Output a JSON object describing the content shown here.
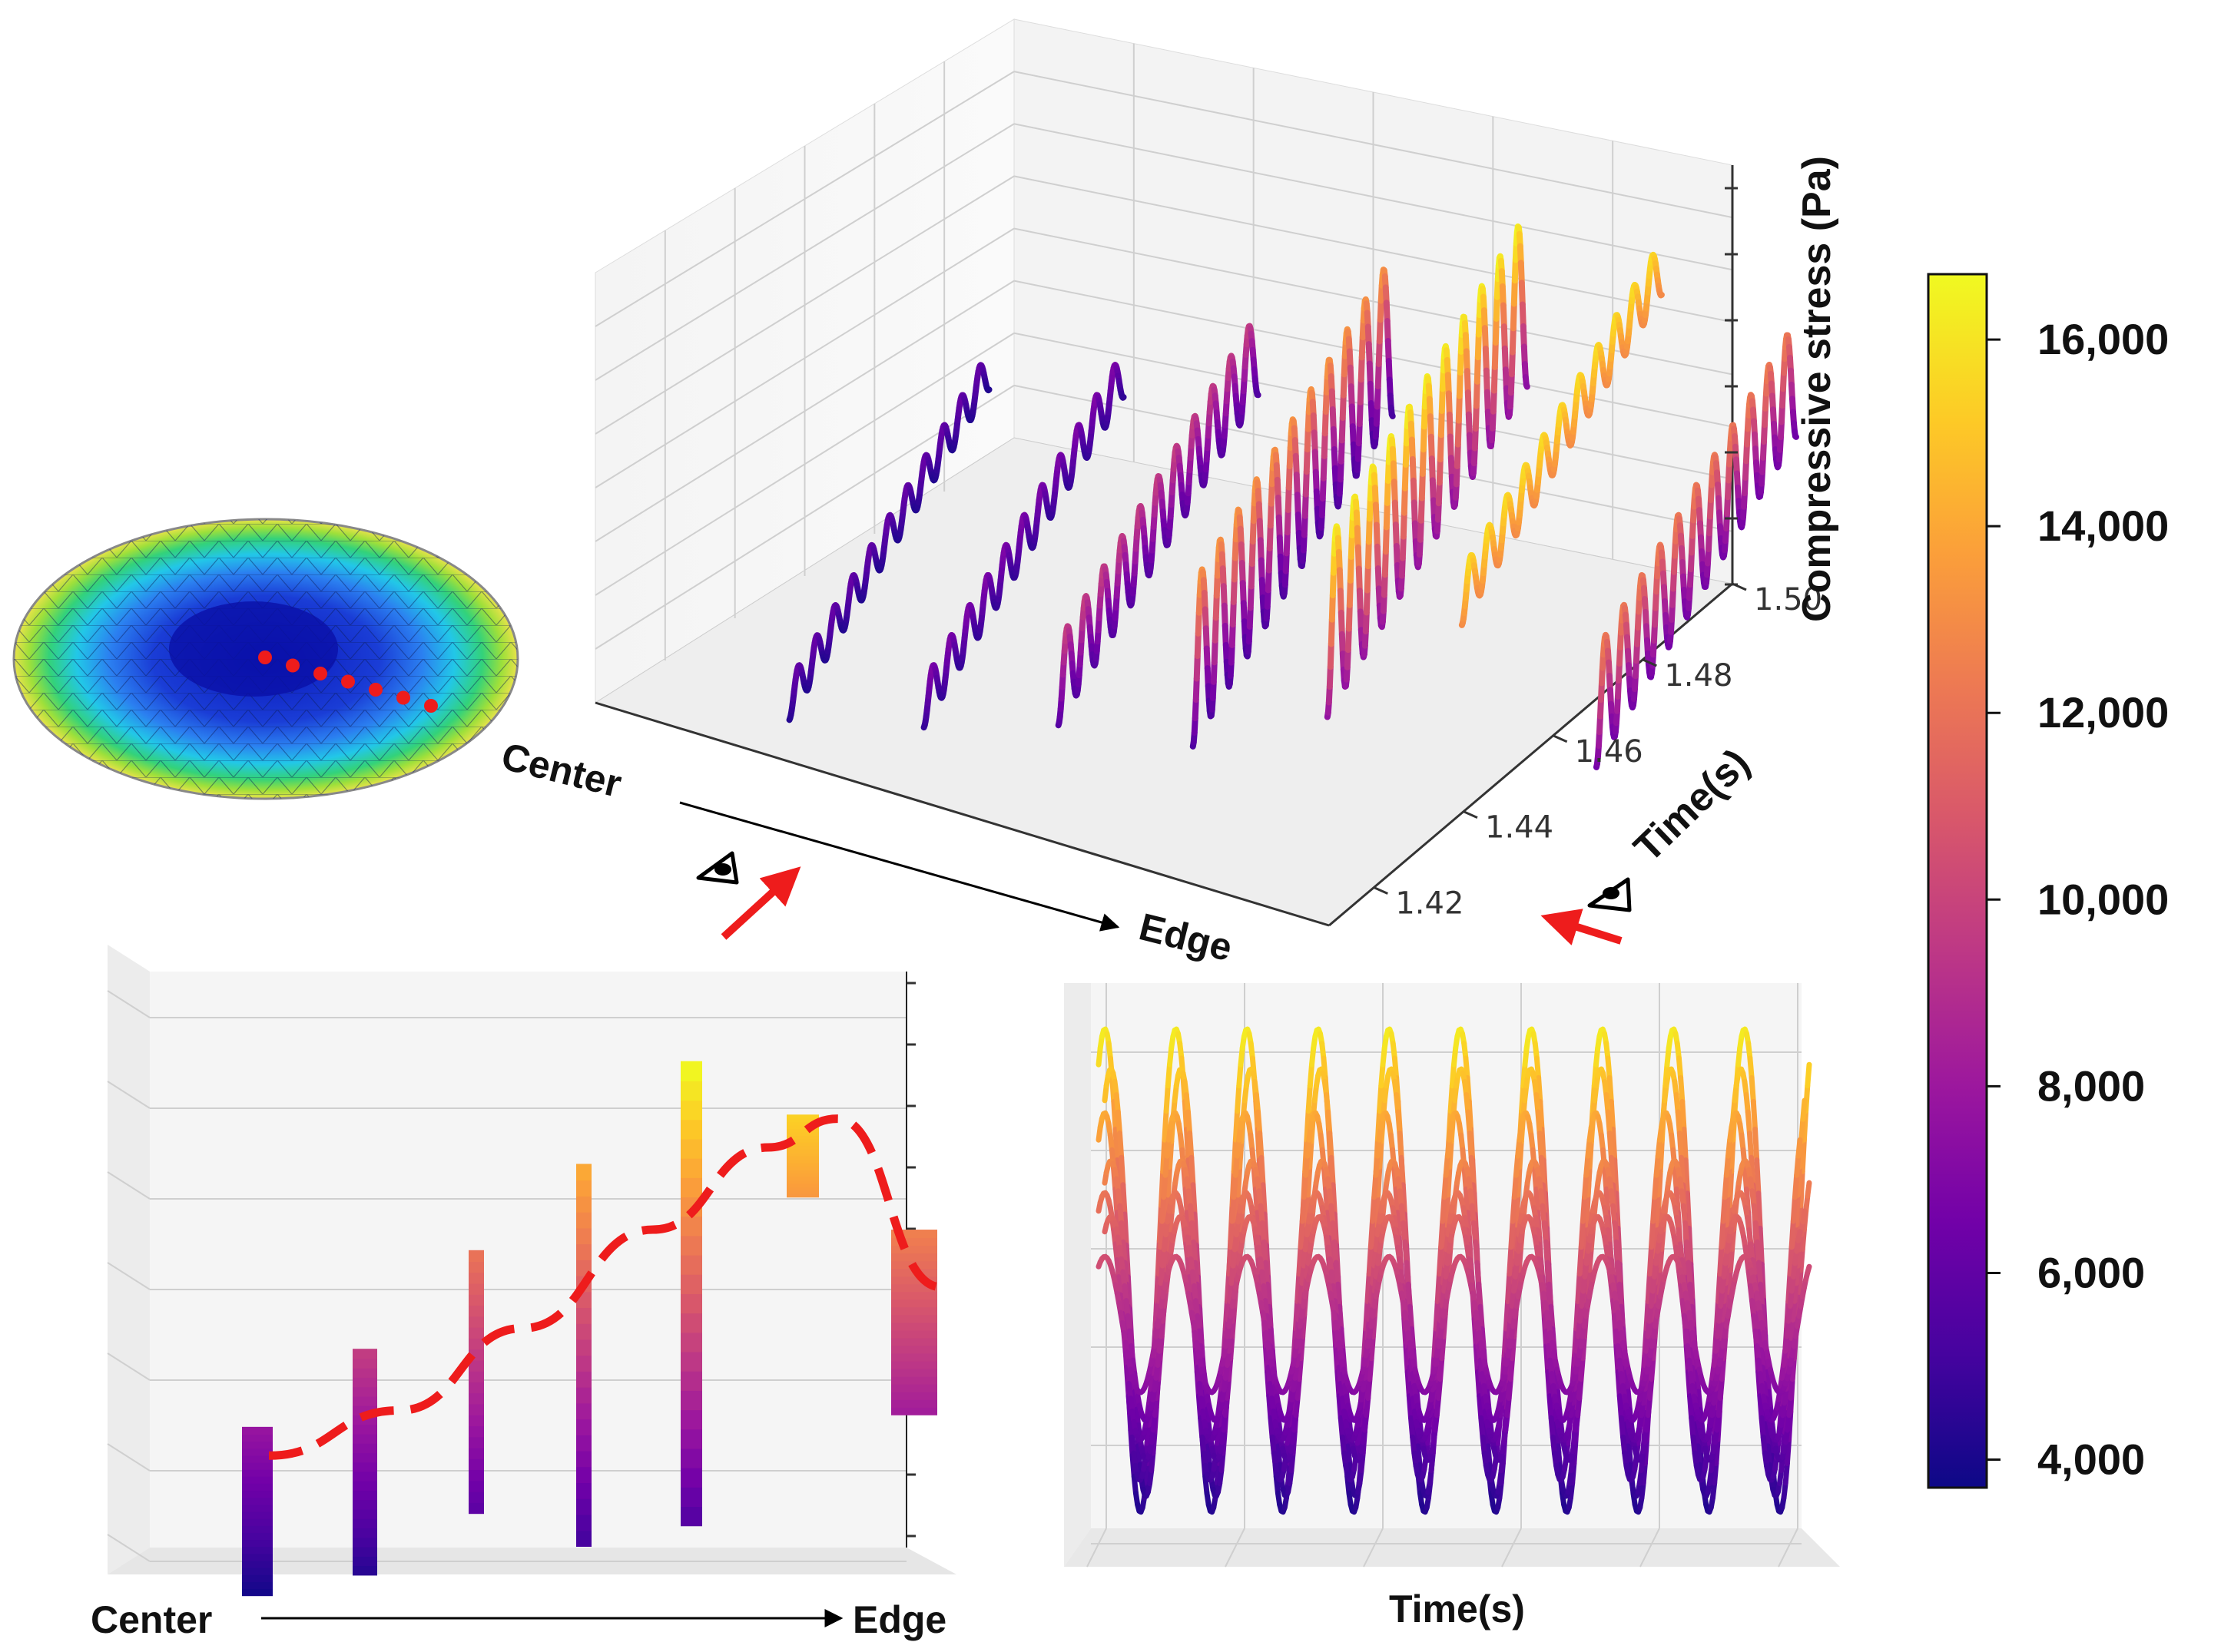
{
  "chart_data": [
    {
      "type": "line",
      "title": "",
      "zlabel": "Compressive stress (Pa)",
      "ylabel": "Time(s)",
      "xlabel_start": "Center",
      "xlabel_end": "Edge",
      "y_ticks": [
        "1.42",
        "1.44",
        "1.46",
        "1.48",
        "1.50"
      ],
      "y_range": [
        1.41,
        1.5
      ],
      "view": "3d",
      "grid": true,
      "series": [
        {
          "min": 4200,
          "max": 6200
        },
        {
          "min": 4600,
          "max": 7000
        },
        {
          "min": 5500,
          "max": 9800
        },
        {
          "min": 5200,
          "max": 13500
        },
        {
          "min": 7500,
          "max": 16500
        },
        {
          "min": 13000,
          "max": 15800
        },
        {
          "min": 6500,
          "max": 12500
        }
      ]
    },
    {
      "type": "area",
      "title": "",
      "xlabel_start": "Center",
      "xlabel_end": "Edge",
      "view": "side projection (Center to Edge)",
      "grid": true,
      "bands": [
        {
          "min": 3800,
          "max": 7900
        },
        {
          "min": 4300,
          "max": 9800
        },
        {
          "min": 5800,
          "max": 12200
        },
        {
          "min": 5000,
          "max": 14300
        },
        {
          "min": 5500,
          "max": 16800
        },
        {
          "min": 13500,
          "max": 15500
        },
        {
          "min": 8200,
          "max": 12700
        }
      ],
      "trend_curve": {
        "x": [
          0,
          1,
          2,
          3,
          4,
          5,
          6
        ],
        "y": [
          7200,
          8300,
          10300,
          12700,
          14700,
          15400,
          11300
        ]
      }
    },
    {
      "type": "line",
      "title": "",
      "xlabel": "Time(s)",
      "view": "side projection (Time)",
      "grid": true,
      "cycles": 10,
      "series": [
        {
          "min": 4200,
          "max": 16300
        },
        {
          "min": 4600,
          "max": 15300
        },
        {
          "min": 5000,
          "max": 14200
        },
        {
          "min": 5500,
          "max": 13000
        },
        {
          "min": 6000,
          "max": 12200
        },
        {
          "min": 6500,
          "max": 11600
        },
        {
          "min": 7200,
          "max": 10600
        }
      ]
    }
  ],
  "colorbar": {
    "ticks": [
      "4,000",
      "6,000",
      "8,000",
      "10,000",
      "12,000",
      "14,000",
      "16,000"
    ],
    "values": [
      4000,
      6000,
      8000,
      10000,
      12000,
      14000,
      16000
    ],
    "range": [
      3700,
      16700
    ],
    "colormap": [
      "#0d0887",
      "#46039f",
      "#7201a8",
      "#9c179e",
      "#bd3786",
      "#d8576b",
      "#ed7953",
      "#fb9f3a",
      "#fdca26",
      "#f0f921"
    ]
  },
  "colors": {
    "trend_curve": "#ee1c1c",
    "mesh_dots": "#ee1c1c",
    "arrow": "#ee1c1c"
  },
  "icons": [
    "eye-icon",
    "eye-icon"
  ]
}
